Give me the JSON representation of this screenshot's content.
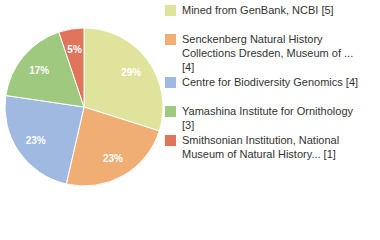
{
  "chart_data": {
    "type": "pie",
    "categories": [
      "Mined from GenBank, NCBI [5]",
      "Senckenberg Natural History Collections Dresden, Museum of ... [4]",
      "Centre for Biodiversity Genomics [4]",
      "Yamashina Institute for Ornithology [3]",
      "Smithsonian Institution, National Museum of Natural History... [1]"
    ],
    "values": [
      29,
      23,
      23,
      17,
      5
    ],
    "value_labels": [
      "29%",
      "23%",
      "23%",
      "17%",
      "5%"
    ],
    "colors": [
      "#e0e39c",
      "#f0ad74",
      "#9fb9e0",
      "#9ec97f",
      "#e0755c"
    ],
    "data_labels": true,
    "legend": "right"
  }
}
